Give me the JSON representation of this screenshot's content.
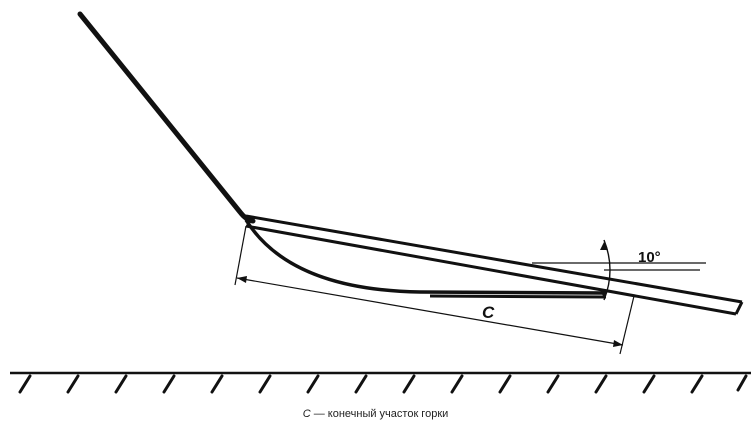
{
  "figure": {
    "dimension_label": "C",
    "angle_label": "10°",
    "caption": {
      "symbol": "C",
      "text": " — конечный участок горки"
    }
  },
  "colors": {
    "line": "#111111",
    "background": "#ffffff"
  }
}
